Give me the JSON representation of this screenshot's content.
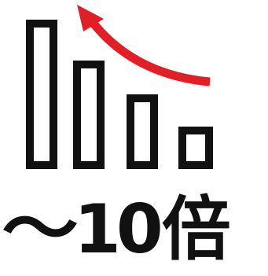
{
  "caption": {
    "tilde": "〜",
    "number": "10",
    "unit": "倍"
  },
  "colors": {
    "bar_stroke": "#111111",
    "arrow": "#e11f26",
    "text": "#111111",
    "background": "#ffffff"
  },
  "icons": {
    "graphic": "decreasing-bars-with-upward-arrow-icon"
  }
}
